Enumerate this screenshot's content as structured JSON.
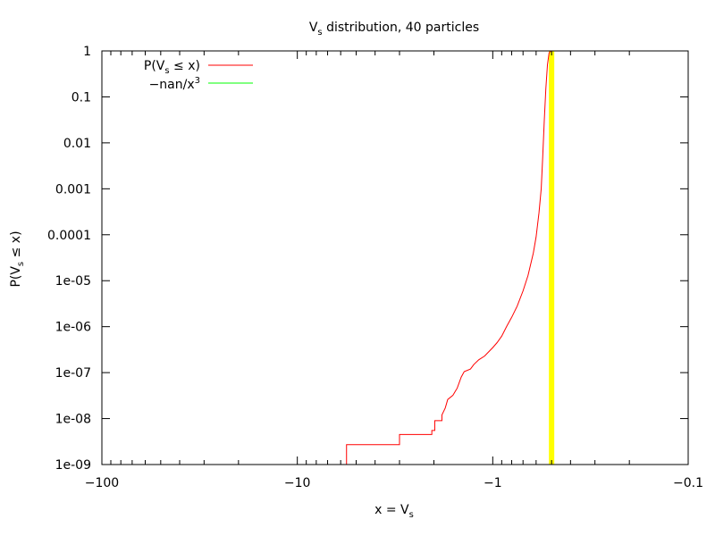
{
  "chart_data": {
    "type": "line",
    "title": {
      "main": "V",
      "sub": "s",
      "rest": " distribution, 40 particles"
    },
    "xlabel": {
      "main": "x = V",
      "sub": "s",
      "rest": ""
    },
    "ylabel": {
      "pre": "P(V",
      "sub": "s",
      "post": " ≤ x)"
    },
    "x_scale": "reciprocal-log",
    "y_scale": "log",
    "xlim": [
      -100,
      -0.1
    ],
    "ylim": [
      1e-09,
      1
    ],
    "x_ticks": [
      {
        "value": -100,
        "label": "−100"
      },
      {
        "value": -10,
        "label": "−10"
      },
      {
        "value": -1,
        "label": "−1"
      },
      {
        "value": -0.1,
        "label": "−0.1"
      }
    ],
    "y_ticks": [
      {
        "value": 1,
        "label": "1"
      },
      {
        "value": 0.1,
        "label": "0.1"
      },
      {
        "value": 0.01,
        "label": "0.01"
      },
      {
        "value": 0.001,
        "label": "0.001"
      },
      {
        "value": 0.0001,
        "label": "0.0001"
      },
      {
        "value": 1e-05,
        "label": "1e-05"
      },
      {
        "value": 1e-06,
        "label": "1e-06"
      },
      {
        "value": 1e-07,
        "label": "1e-07"
      },
      {
        "value": 1e-08,
        "label": "1e-08"
      },
      {
        "value": 1e-09,
        "label": "1e-09"
      }
    ],
    "grid": false,
    "legend": {
      "position": "top-left"
    },
    "series": [
      {
        "legend": {
          "pre": "P(V",
          "sub": "s",
          "post": " ≤ x)"
        },
        "color": "#ff0000",
        "kind": "step",
        "points": [
          [
            -5.6,
            1e-09
          ],
          [
            -5.6,
            2.7e-09
          ],
          [
            -3.0,
            2.7e-09
          ],
          [
            -3.0,
            4.5e-09
          ],
          [
            -2.05,
            4.5e-09
          ],
          [
            -2.05,
            5.5e-09
          ],
          [
            -1.98,
            5.5e-09
          ],
          [
            -1.98,
            9e-09
          ],
          [
            -1.82,
            9e-09
          ],
          [
            -1.82,
            1.2e-08
          ],
          [
            -1.75,
            1.7e-08
          ],
          [
            -1.7,
            2.6e-08
          ],
          [
            -1.6,
            3.2e-08
          ],
          [
            -1.52,
            4.6e-08
          ],
          [
            -1.45,
            8e-08
          ],
          [
            -1.4,
            1.05e-07
          ],
          [
            -1.3,
            1.2e-07
          ],
          [
            -1.25,
            1.5e-07
          ],
          [
            -1.18,
            1.9e-07
          ],
          [
            -1.1,
            2.3e-07
          ],
          [
            -1.0,
            3.5e-07
          ],
          [
            -0.95,
            4.5e-07
          ],
          [
            -0.9,
            6.2e-07
          ],
          [
            -0.85,
            1e-06
          ],
          [
            -0.8,
            1.6e-06
          ],
          [
            -0.75,
            2.8e-06
          ],
          [
            -0.7,
            6e-06
          ],
          [
            -0.66,
            1.3e-05
          ],
          [
            -0.62,
            4e-05
          ],
          [
            -0.6,
            9e-05
          ],
          [
            -0.58,
            0.0003
          ],
          [
            -0.565,
            0.001
          ],
          [
            -0.555,
            0.005
          ],
          [
            -0.545,
            0.03
          ],
          [
            -0.535,
            0.15
          ],
          [
            -0.525,
            0.5
          ],
          [
            -0.515,
            0.9
          ],
          [
            -0.505,
            1.0
          ],
          [
            -0.1,
            1.0
          ]
        ]
      },
      {
        "legend": {
          "pre": "−nan/x",
          "sup": "3",
          "post": ""
        },
        "color": "#00ff00",
        "kind": "line",
        "points": []
      }
    ],
    "annotations": [
      {
        "type": "vertical-band",
        "x": -0.5,
        "color": "#ffff00"
      }
    ]
  }
}
